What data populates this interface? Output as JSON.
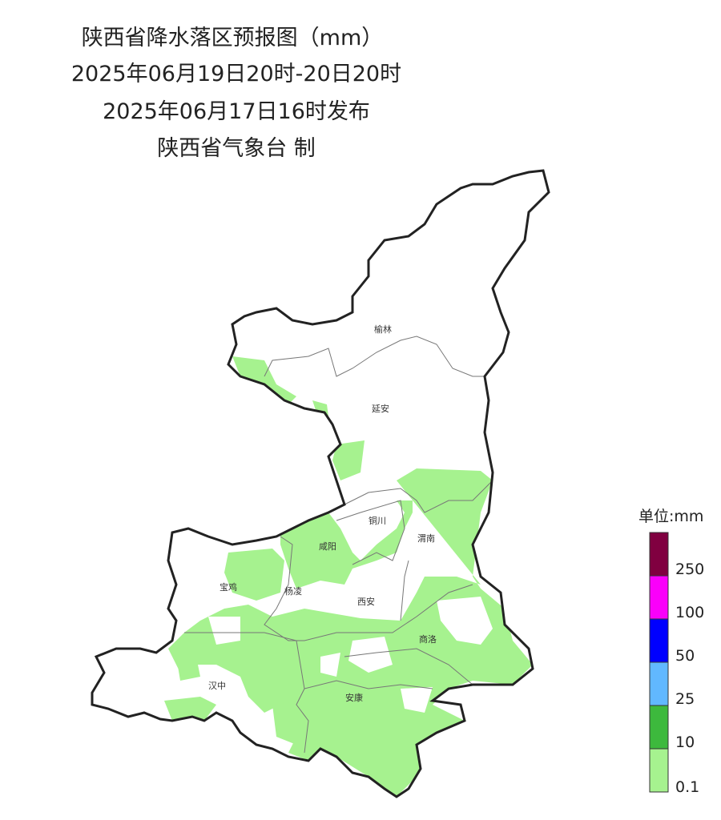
{
  "title": "陕西省降水落区预报图（mm）",
  "valid_period": "2025年06月19日20时-20日20时",
  "issued": "2025年06月17日16时发布",
  "producer": "陕西省气象台 制",
  "cities": [
    "榆林",
    "延安",
    "铜川",
    "渭南",
    "咸阳",
    "宝鸡",
    "杨凌",
    "西安",
    "商洛",
    "汉中",
    "安康"
  ],
  "legend": {
    "unit": "单位:mm",
    "levels": [
      {
        "value": 0.1,
        "color": "#a6f28f"
      },
      {
        "value": 10,
        "color": "#3db93d"
      },
      {
        "value": 25,
        "color": "#61b8ff"
      },
      {
        "value": 50,
        "color": "#0000ff"
      },
      {
        "value": 100,
        "color": "#fa00fa"
      },
      {
        "value": 250,
        "color": "#800040"
      }
    ]
  }
}
